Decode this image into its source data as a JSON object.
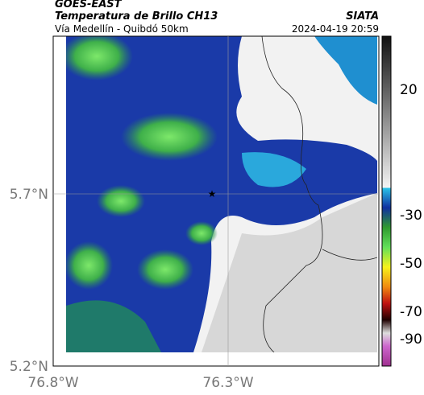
{
  "header": {
    "title": "GOES-EAST",
    "subtitle": "Temperatura de Brillo CH13",
    "source": "SIATA",
    "location": "Vía Medellín - Quibdó 50km",
    "datetime": "2024-04-19 20:59"
  },
  "axes": {
    "y_labels": [
      "5.7°N",
      "5.2°N"
    ],
    "x_labels": [
      "76.8°W",
      "76.3°W"
    ]
  },
  "colorbar": {
    "labels": [
      "20",
      "-30",
      "-50",
      "-70",
      "-90"
    ]
  }
}
